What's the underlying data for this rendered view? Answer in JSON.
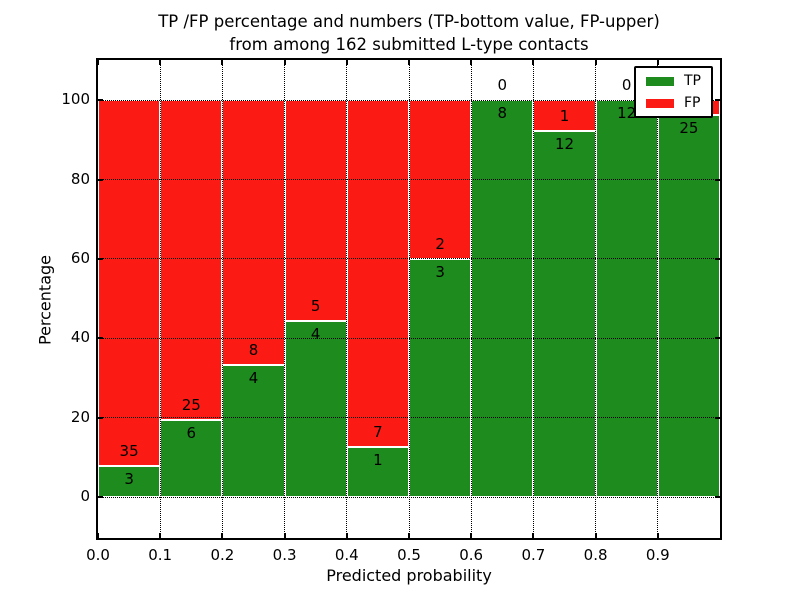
{
  "chart_data": {
    "type": "bar",
    "stacked": true,
    "normalized_to_percent": true,
    "title_lines": [
      "TP /FP percentage and numbers (TP-bottom value, FP-upper)",
      "from among 162 submitted L-type contacts"
    ],
    "xlabel": "Predicted probability",
    "ylabel": "Percentage",
    "xlim": [
      0.0,
      1.0
    ],
    "ylim": [
      -10.3,
      110.1
    ],
    "bin_width": 0.1,
    "bin_starts": [
      0.0,
      0.1,
      0.2,
      0.3,
      0.4,
      0.5,
      0.6,
      0.7,
      0.8,
      0.9
    ],
    "x_tick_labels": [
      "0.0",
      "0.1",
      "0.2",
      "0.3",
      "0.4",
      "0.5",
      "0.6",
      "0.7",
      "0.8",
      "0.9"
    ],
    "y_tick_values": [
      0,
      20,
      40,
      60,
      80,
      100
    ],
    "grid": "dotted black, both axes, drawn above bars",
    "series": [
      {
        "name": "TP",
        "position": "bottom",
        "color": "#1e8b1e",
        "counts": [
          3,
          6,
          4,
          4,
          1,
          3,
          8,
          12,
          12,
          25
        ]
      },
      {
        "name": "FP",
        "position": "top",
        "color": "#fc1a15",
        "counts": [
          35,
          25,
          8,
          5,
          7,
          2,
          0,
          1,
          0,
          1
        ]
      }
    ],
    "tp_percent_per_bin": [
      7.9,
      19.4,
      33.3,
      44.4,
      12.5,
      60.0,
      100.0,
      92.3,
      100.0,
      96.2
    ],
    "total_contacts": 162,
    "legend": {
      "position": "upper right",
      "entries": [
        "TP",
        "FP"
      ]
    },
    "note": "FP count label of the 0.9-1.0 bin is hidden behind the legend box"
  }
}
